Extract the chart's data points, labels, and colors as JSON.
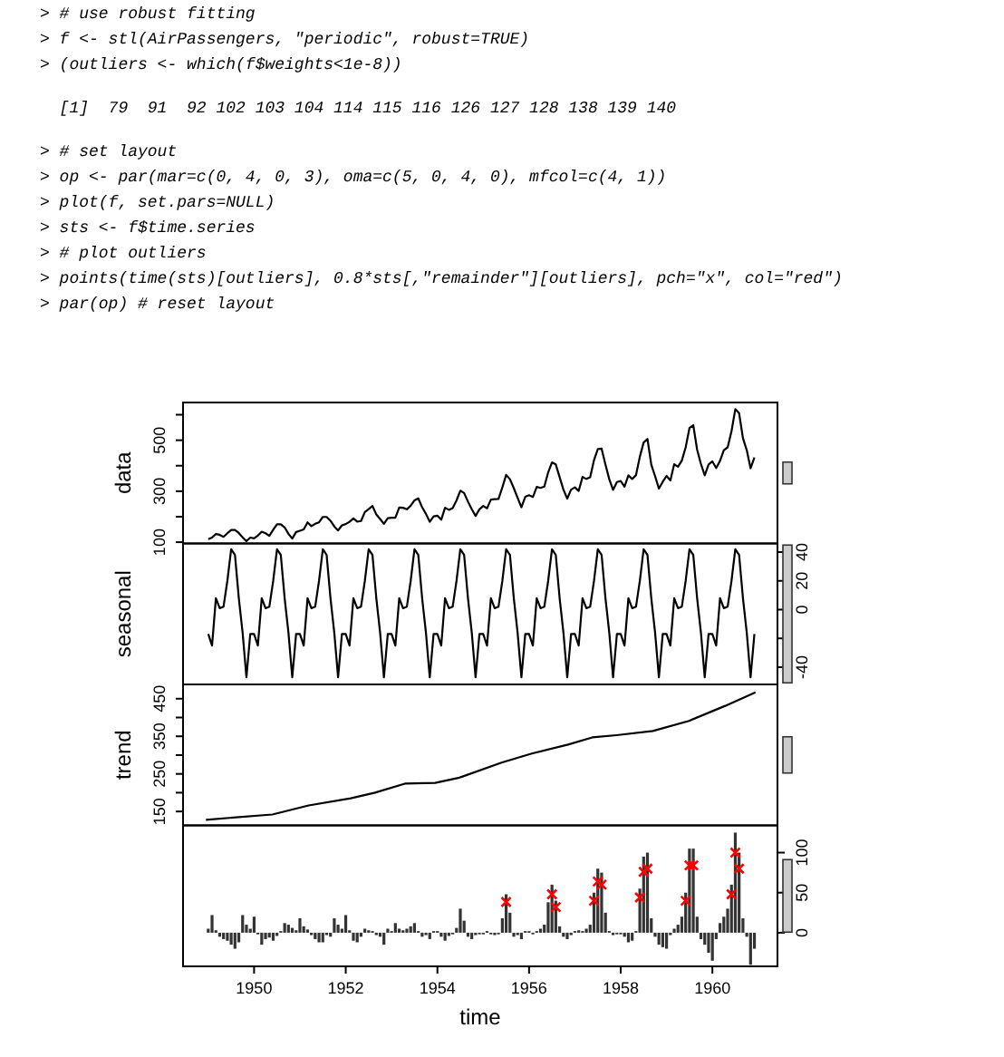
{
  "chart_data": [
    {
      "type": "other",
      "annotations": [
        "> # use robust fitting",
        "> f <- stl(AirPassengers, \"periodic\", robust=TRUE)",
        "> (outliers <- which(f$weights<1e-8))",
        "  [1]  79  91  92 102 103 104 114 115 116 126 127 128 138 139 140",
        "> # set layout",
        "> op <- par(mar=c(0, 4, 0, 3), oma=c(5, 0, 4, 0), mfcol=c(4, 1))",
        "> plot(f, set.pars=NULL)",
        "> sts <- f$time.series",
        "> # plot outliers",
        "> points(time(sts)[outliers], 0.8*sts[,\"remainder\"][outliers], pch=\"x\", col=\"red\")",
        "> par(op) # reset layout"
      ]
    },
    {
      "type": "line",
      "ylabel": "data",
      "color": "#000000",
      "xlim": [
        1948.45,
        1961.42
      ],
      "ylim": [
        95,
        648
      ],
      "yticks": [
        100,
        {
          "value": 200,
          "label": null
        },
        300,
        {
          "value": 400,
          "label": null
        },
        500,
        {
          "value": 600,
          "label": null
        }
      ],
      "tick_labels": "y",
      "x": [
        1949,
        1949.083,
        1949.167,
        1949.25,
        1949.333,
        1949.417,
        1949.5,
        1949.583,
        1949.667,
        1949.75,
        1949.833,
        1949.917,
        1950,
        1950.083,
        1950.167,
        1950.25,
        1950.333,
        1950.417,
        1950.5,
        1950.583,
        1950.667,
        1950.75,
        1950.833,
        1950.917,
        1951,
        1951.083,
        1951.167,
        1951.25,
        1951.333,
        1951.417,
        1951.5,
        1951.583,
        1951.667,
        1951.75,
        1951.833,
        1951.917,
        1952,
        1952.083,
        1952.167,
        1952.25,
        1952.333,
        1952.417,
        1952.5,
        1952.583,
        1952.667,
        1952.75,
        1952.833,
        1952.917,
        1953,
        1953.083,
        1953.167,
        1953.25,
        1953.333,
        1953.417,
        1953.5,
        1953.583,
        1953.667,
        1953.75,
        1953.833,
        1953.917,
        1954,
        1954.083,
        1954.167,
        1954.25,
        1954.333,
        1954.417,
        1954.5,
        1954.583,
        1954.667,
        1954.75,
        1954.833,
        1954.917,
        1955,
        1955.083,
        1955.167,
        1955.25,
        1955.333,
        1955.417,
        1955.5,
        1955.583,
        1955.667,
        1955.75,
        1955.833,
        1955.917,
        1956,
        1956.083,
        1956.167,
        1956.25,
        1956.333,
        1956.417,
        1956.5,
        1956.583,
        1956.667,
        1956.75,
        1956.833,
        1956.917,
        1957,
        1957.083,
        1957.167,
        1957.25,
        1957.333,
        1957.417,
        1957.5,
        1957.583,
        1957.667,
        1957.75,
        1957.833,
        1957.917,
        1958,
        1958.083,
        1958.167,
        1958.25,
        1958.333,
        1958.417,
        1958.5,
        1958.583,
        1958.667,
        1958.75,
        1958.833,
        1958.917,
        1959,
        1959.083,
        1959.167,
        1959.25,
        1959.333,
        1959.417,
        1959.5,
        1959.583,
        1959.667,
        1959.75,
        1959.833,
        1959.917,
        1960,
        1960.083,
        1960.167,
        1960.25,
        1960.333,
        1960.417,
        1960.5,
        1960.583,
        1960.667,
        1960.75,
        1960.833,
        1960.917
      ],
      "values": [
        112,
        118,
        132,
        129,
        121,
        135,
        148,
        148,
        136,
        119,
        104,
        118,
        115,
        126,
        141,
        135,
        125,
        149,
        170,
        170,
        158,
        133,
        114,
        140,
        145,
        150,
        178,
        163,
        172,
        178,
        199,
        199,
        184,
        162,
        146,
        166,
        171,
        180,
        193,
        181,
        183,
        218,
        230,
        242,
        209,
        191,
        172,
        194,
        196,
        196,
        236,
        235,
        229,
        243,
        264,
        272,
        237,
        211,
        180,
        201,
        204,
        188,
        235,
        227,
        234,
        264,
        302,
        293,
        259,
        229,
        203,
        229,
        242,
        233,
        267,
        269,
        270,
        315,
        364,
        347,
        312,
        274,
        237,
        278,
        284,
        277,
        317,
        313,
        318,
        374,
        413,
        405,
        355,
        306,
        271,
        306,
        315,
        301,
        356,
        348,
        355,
        422,
        465,
        467,
        404,
        347,
        305,
        336,
        340,
        318,
        362,
        348,
        363,
        435,
        491,
        505,
        404,
        359,
        310,
        337,
        360,
        342,
        406,
        396,
        420,
        472,
        548,
        559,
        463,
        407,
        362,
        405,
        417,
        391,
        419,
        461,
        472,
        535,
        622,
        606,
        508,
        461,
        390,
        432
      ]
    },
    {
      "type": "line",
      "ylabel": "seasonal",
      "xlim": [
        1948.45,
        1961.42
      ],
      "y2lim": [
        -52,
        46
      ],
      "y2ticks": [
        -40,
        {
          "value": -20,
          "label": null
        },
        0,
        20,
        40
      ],
      "tick_labels": "y",
      "x": [
        1949,
        1949.083,
        1949.167,
        1949.25,
        1949.333,
        1949.417,
        1949.5,
        1949.583,
        1949.667,
        1949.75,
        1949.833,
        1949.917,
        1950,
        1950.083,
        1950.167,
        1950.25,
        1950.333,
        1950.417,
        1950.5,
        1950.583,
        1950.667,
        1950.75,
        1950.833,
        1950.917,
        1951,
        1951.083,
        1951.167,
        1951.25,
        1951.333,
        1951.417,
        1951.5,
        1951.583,
        1951.667,
        1951.75,
        1951.833,
        1951.917,
        1952,
        1952.083,
        1952.167,
        1952.25,
        1952.333,
        1952.417,
        1952.5,
        1952.583,
        1952.667,
        1952.75,
        1952.833,
        1952.917,
        1953,
        1953.083,
        1953.167,
        1953.25,
        1953.333,
        1953.417,
        1953.5,
        1953.583,
        1953.667,
        1953.75,
        1953.833,
        1953.917,
        1954,
        1954.083,
        1954.167,
        1954.25,
        1954.333,
        1954.417,
        1954.5,
        1954.583,
        1954.667,
        1954.75,
        1954.833,
        1954.917,
        1955,
        1955.083,
        1955.167,
        1955.25,
        1955.333,
        1955.417,
        1955.5,
        1955.583,
        1955.667,
        1955.75,
        1955.833,
        1955.917,
        1956,
        1956.083,
        1956.167,
        1956.25,
        1956.333,
        1956.417,
        1956.5,
        1956.583,
        1956.667,
        1956.75,
        1956.833,
        1956.917,
        1957,
        1957.083,
        1957.167,
        1957.25,
        1957.333,
        1957.417,
        1957.5,
        1957.583,
        1957.667,
        1957.75,
        1957.833,
        1957.917,
        1958,
        1958.083,
        1958.167,
        1958.25,
        1958.333,
        1958.417,
        1958.5,
        1958.583,
        1958.667,
        1958.75,
        1958.833,
        1958.917,
        1959,
        1959.083,
        1959.167,
        1959.25,
        1959.333,
        1959.417,
        1959.5,
        1959.583,
        1959.667,
        1959.75,
        1959.833,
        1959.917,
        1960,
        1960.083,
        1960.167,
        1960.25,
        1960.333,
        1960.417,
        1960.5,
        1960.583,
        1960.667,
        1960.75,
        1960.833,
        1960.917
      ],
      "series": [
        {
          "color": "#000000",
          "axis": "y2",
          "values": [
            -17,
            -25,
            8,
            1,
            2,
            20,
            42,
            38,
            8,
            -16,
            -47,
            -17,
            -17,
            -25,
            8,
            1,
            2,
            20,
            42,
            38,
            8,
            -16,
            -47,
            -17,
            -17,
            -25,
            8,
            1,
            2,
            20,
            42,
            38,
            8,
            -16,
            -47,
            -17,
            -17,
            -25,
            8,
            1,
            2,
            20,
            42,
            38,
            8,
            -16,
            -47,
            -17,
            -17,
            -25,
            8,
            1,
            2,
            20,
            42,
            38,
            8,
            -16,
            -47,
            -17,
            -17,
            -25,
            8,
            1,
            2,
            20,
            42,
            38,
            8,
            -16,
            -47,
            -17,
            -17,
            -25,
            8,
            1,
            2,
            20,
            42,
            38,
            8,
            -16,
            -47,
            -17,
            -17,
            -25,
            8,
            1,
            2,
            20,
            42,
            38,
            8,
            -16,
            -47,
            -17,
            -17,
            -25,
            8,
            1,
            2,
            20,
            42,
            38,
            8,
            -16,
            -47,
            -17,
            -17,
            -25,
            8,
            1,
            2,
            20,
            42,
            38,
            8,
            -16,
            -47,
            -17,
            -17,
            -25,
            8,
            1,
            2,
            20,
            42,
            38,
            8,
            -16,
            -47,
            -17,
            -17,
            -25,
            8,
            1,
            2,
            20,
            42,
            38,
            8,
            -16,
            -47,
            -17
          ]
        }
      ]
    },
    {
      "type": "line",
      "ylabel": "trend",
      "color": "#000000",
      "xlim": [
        1948.45,
        1961.42
      ],
      "ylim": [
        113,
        488
      ],
      "yticks": [
        150,
        {
          "value": 200,
          "label": null
        },
        250,
        {
          "value": 300,
          "label": null
        },
        350,
        {
          "value": 400,
          "label": null
        },
        450
      ],
      "tick_labels": "y",
      "x": [
        1948.95,
        1950.4,
        1951.19,
        1952.11,
        1952.64,
        1953.29,
        1953.95,
        1954.48,
        1955.4,
        1956.06,
        1956.85,
        1957.38,
        1957.91,
        1958.7,
        1959.49,
        1960.28,
        1960.94
      ],
      "values": [
        128,
        142,
        166,
        185,
        200,
        224,
        226,
        240,
        280,
        304,
        328,
        347,
        353,
        364,
        391,
        431,
        467
      ]
    },
    {
      "type": "bar",
      "xlabel": "time",
      "marker": "cross",
      "xlim": [
        1948.45,
        1961.42
      ],
      "xticks": [
        1950,
        1952,
        1954,
        1956,
        1958,
        1960
      ],
      "y2lim": [
        -42,
        134
      ],
      "y2ticks": [
        0,
        50,
        100
      ],
      "x": [
        1949,
        1949.083,
        1949.167,
        1949.25,
        1949.333,
        1949.417,
        1949.5,
        1949.583,
        1949.667,
        1949.75,
        1949.833,
        1949.917,
        1950,
        1950.083,
        1950.167,
        1950.25,
        1950.333,
        1950.417,
        1950.5,
        1950.583,
        1950.667,
        1950.75,
        1950.833,
        1950.917,
        1951,
        1951.083,
        1951.167,
        1951.25,
        1951.333,
        1951.417,
        1951.5,
        1951.583,
        1951.667,
        1951.75,
        1951.833,
        1951.917,
        1952,
        1952.083,
        1952.167,
        1952.25,
        1952.333,
        1952.417,
        1952.5,
        1952.583,
        1952.667,
        1952.75,
        1952.833,
        1952.917,
        1953,
        1953.083,
        1953.167,
        1953.25,
        1953.333,
        1953.417,
        1953.5,
        1953.583,
        1953.667,
        1953.75,
        1953.833,
        1953.917,
        1954,
        1954.083,
        1954.167,
        1954.25,
        1954.333,
        1954.417,
        1954.5,
        1954.583,
        1954.667,
        1954.75,
        1954.833,
        1954.917,
        1955,
        1955.083,
        1955.167,
        1955.25,
        1955.333,
        1955.417,
        1955.5,
        1955.583,
        1955.667,
        1955.75,
        1955.833,
        1955.917,
        1956,
        1956.083,
        1956.167,
        1956.25,
        1956.333,
        1956.417,
        1956.5,
        1956.583,
        1956.667,
        1956.75,
        1956.833,
        1956.917,
        1957,
        1957.083,
        1957.167,
        1957.25,
        1957.333,
        1957.417,
        1957.5,
        1957.583,
        1957.667,
        1957.75,
        1957.833,
        1957.917,
        1958,
        1958.083,
        1958.167,
        1958.25,
        1958.333,
        1958.417,
        1958.5,
        1958.583,
        1958.667,
        1958.75,
        1958.833,
        1958.917,
        1959,
        1959.083,
        1959.167,
        1959.25,
        1959.333,
        1959.417,
        1959.5,
        1959.583,
        1959.667,
        1959.75,
        1959.833,
        1959.917,
        1960,
        1960.083,
        1960.167,
        1960.25,
        1960.333,
        1960.417,
        1960.5,
        1960.583,
        1960.667,
        1960.75,
        1960.833,
        1960.917
      ],
      "series": [
        {
          "color": "#333333",
          "axis": "y2",
          "values": [
            5,
            22,
            3,
            -5,
            -8,
            -10,
            -15,
            -20,
            -12,
            22,
            10,
            5,
            20,
            -2,
            -15,
            -8,
            -6,
            -10,
            -4,
            2,
            12,
            10,
            6,
            3,
            18,
            8,
            4,
            -3,
            -8,
            -12,
            -12,
            -3,
            -5,
            18,
            10,
            5,
            22,
            3,
            -10,
            -12,
            -5,
            5,
            3,
            2,
            -3,
            -5,
            -15,
            5,
            2,
            12,
            5,
            3,
            5,
            8,
            12,
            2,
            -5,
            -3,
            -8,
            2,
            2,
            -5,
            -10,
            -4,
            -2,
            6,
            30,
            15,
            -5,
            -8,
            -3,
            -2,
            -2,
            2,
            -2,
            -3,
            -2,
            18,
            48,
            25,
            -5,
            -3,
            -8,
            2,
            2,
            -2,
            2,
            5,
            10,
            38,
            60,
            40,
            8,
            -5,
            -8,
            -3,
            2,
            3,
            2,
            5,
            10,
            50,
            80,
            75,
            25,
            2,
            -3,
            -2,
            -2,
            -5,
            -12,
            -10,
            2,
            55,
            95,
            100,
            18,
            -5,
            -15,
            -18,
            -20,
            -3,
            5,
            10,
            20,
            50,
            105,
            105,
            20,
            -8,
            -15,
            -25,
            -35,
            -8,
            12,
            20,
            30,
            60,
            125,
            100,
            18,
            -5,
            -40,
            -20
          ]
        },
        {
          "type": "scatter",
          "color": "#ff0000",
          "axis": "y2",
          "x": [
            1955.5,
            1956.5,
            1956.583,
            1957.417,
            1957.5,
            1957.583,
            1958.417,
            1958.5,
            1958.583,
            1959.417,
            1959.5,
            1959.583,
            1960.417,
            1960.5,
            1960.583
          ],
          "values": [
            38.4,
            48,
            32,
            40,
            64,
            60,
            44,
            76,
            80,
            40,
            84,
            84,
            48,
            100,
            80
          ]
        }
      ]
    }
  ]
}
